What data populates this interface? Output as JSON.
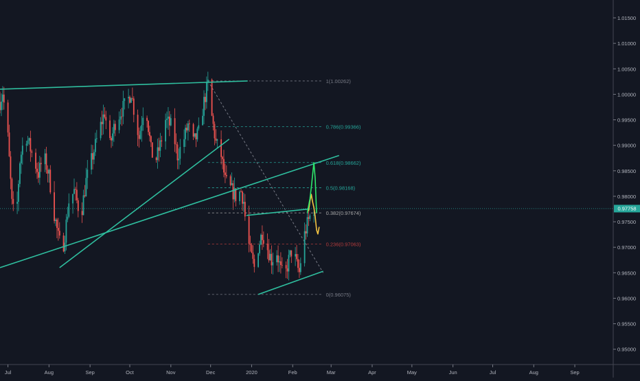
{
  "chart_data": {
    "type": "candlestick",
    "title": "",
    "xlabel": "",
    "ylabel": "",
    "ylim": [
      0.947,
      1.0185
    ],
    "x_range": [
      "2019-06-25",
      "2020-09-30"
    ],
    "grid": false,
    "legend": "none",
    "price_scale": {
      "side": "right",
      "ticks": [
        "1.01500",
        "1.01000",
        "1.00500",
        "1.00000",
        "0.99500",
        "0.99000",
        "0.98500",
        "0.98000",
        "0.97500",
        "0.97000",
        "0.96500",
        "0.96000",
        "0.95500",
        "0.95000"
      ],
      "last_price": "0.97758",
      "last_price_value": 0.97758
    },
    "time_scale": {
      "ticks": [
        {
          "label": "Jul",
          "date": "2019-07-01"
        },
        {
          "label": "Aug",
          "date": "2019-08-01"
        },
        {
          "label": "Sep",
          "date": "2019-09-01"
        },
        {
          "label": "Oct",
          "date": "2019-10-01"
        },
        {
          "label": "Nov",
          "date": "2019-11-01"
        },
        {
          "label": "Dec",
          "date": "2019-12-01"
        },
        {
          "label": "2020",
          "date": "2020-01-01"
        },
        {
          "label": "Feb",
          "date": "2020-02-01"
        },
        {
          "label": "Mar",
          "date": "2020-03-01"
        },
        {
          "label": "Apr",
          "date": "2020-04-01"
        },
        {
          "label": "May",
          "date": "2020-05-01"
        },
        {
          "label": "Jun",
          "date": "2020-06-01"
        },
        {
          "label": "Jul",
          "date": "2020-07-01"
        },
        {
          "label": "Aug",
          "date": "2020-08-01"
        },
        {
          "label": "Sep",
          "date": "2020-09-01"
        }
      ]
    },
    "price_path": [
      [
        "2019-06-25",
        0.9985
      ],
      [
        "2019-06-27",
        1.0005
      ],
      [
        "2019-07-01",
        0.9915
      ],
      [
        "2019-07-04",
        0.9785
      ],
      [
        "2019-07-07",
        0.9745
      ],
      [
        "2019-07-10",
        0.987
      ],
      [
        "2019-07-14",
        0.9925
      ],
      [
        "2019-07-19",
        0.9885
      ],
      [
        "2019-07-24",
        0.9845
      ],
      [
        "2019-07-28",
        0.988
      ],
      [
        "2019-08-01",
        0.984
      ],
      [
        "2019-08-05",
        0.9765
      ],
      [
        "2019-08-08",
        0.972
      ],
      [
        "2019-08-11",
        0.969
      ],
      [
        "2019-08-13",
        0.9725
      ],
      [
        "2019-08-16",
        0.979
      ],
      [
        "2019-08-20",
        0.981
      ],
      [
        "2019-08-25",
        0.976
      ],
      [
        "2019-08-29",
        0.983
      ],
      [
        "2019-09-03",
        0.988
      ],
      [
        "2019-09-08",
        0.993
      ],
      [
        "2019-09-12",
        0.9965
      ],
      [
        "2019-09-16",
        0.99
      ],
      [
        "2019-09-20",
        0.9945
      ],
      [
        "2019-09-25",
        0.997
      ],
      [
        "2019-09-29",
        0.9985
      ],
      [
        "2019-10-02",
        1.0005
      ],
      [
        "2019-10-05",
        0.9955
      ],
      [
        "2019-10-08",
        0.9915
      ],
      [
        "2019-10-11",
        0.9965
      ],
      [
        "2019-10-14",
        0.996
      ],
      [
        "2019-10-17",
        0.989
      ],
      [
        "2019-10-20",
        0.9865
      ],
      [
        "2019-10-24",
        0.99
      ],
      [
        "2019-10-28",
        0.995
      ],
      [
        "2019-11-02",
        0.9935
      ],
      [
        "2019-11-06",
        0.988
      ],
      [
        "2019-11-10",
        0.9905
      ],
      [
        "2019-11-14",
        0.994
      ],
      [
        "2019-11-18",
        0.9905
      ],
      [
        "2019-11-22",
        0.9925
      ],
      [
        "2019-11-26",
        0.9985
      ],
      [
        "2019-11-29",
        1.002
      ],
      [
        "2019-12-02",
        0.9955
      ],
      [
        "2019-12-05",
        0.9905
      ],
      [
        "2019-12-09",
        0.988
      ],
      [
        "2019-12-12",
        0.983
      ],
      [
        "2019-12-16",
        0.9815
      ],
      [
        "2019-12-20",
        0.98
      ],
      [
        "2019-12-24",
        0.981
      ],
      [
        "2019-12-26",
        0.979
      ],
      [
        "2019-12-28",
        0.973
      ],
      [
        "2019-12-31",
        0.969
      ],
      [
        "2020-01-03",
        0.966
      ],
      [
        "2020-01-06",
        0.97
      ],
      [
        "2020-01-09",
        0.973
      ],
      [
        "2020-01-12",
        0.9705
      ],
      [
        "2020-01-16",
        0.9675
      ],
      [
        "2020-01-20",
        0.969
      ],
      [
        "2020-01-23",
        0.9655
      ],
      [
        "2020-01-26",
        0.964
      ],
      [
        "2020-01-29",
        0.9675
      ],
      [
        "2020-02-01",
        0.97
      ],
      [
        "2020-02-04",
        0.9665
      ],
      [
        "2020-02-06",
        0.965
      ],
      [
        "2020-02-08",
        0.9695
      ],
      [
        "2020-02-10",
        0.9725
      ],
      [
        "2020-02-12",
        0.9745
      ],
      [
        "2020-02-14",
        0.976
      ],
      [
        "2020-02-16",
        0.977
      ],
      [
        "2020-02-17",
        0.97758
      ]
    ],
    "fibonacci": {
      "levels": [
        {
          "ratio": "1",
          "label": "1(1.00262)",
          "value": 1.00262,
          "color": "#787b86"
        },
        {
          "ratio": "0.786",
          "label": "0.786(0.99366)",
          "value": 0.99366,
          "color": "#26a69a"
        },
        {
          "ratio": "0.618",
          "label": "0.618(0.98662)",
          "value": 0.98662,
          "color": "#26a69a"
        },
        {
          "ratio": "0.5",
          "label": "0.5(0.98168)",
          "value": 0.98168,
          "color": "#26a69a"
        },
        {
          "ratio": "0.382",
          "label": "0.382(0.97674)",
          "value": 0.97674,
          "color": "#aaaaaa"
        },
        {
          "ratio": "0.236",
          "label": "0.236(0.97063)",
          "value": 0.97063,
          "color": "#b83c3c"
        },
        {
          "ratio": "0",
          "label": "0(0.96075)",
          "value": 0.96075,
          "color": "#787b86"
        }
      ],
      "start": [
        "2019-11-29",
        1.00262
      ],
      "end": [
        "2020-02-24",
        0.965
      ]
    },
    "trendlines": [
      {
        "from": [
          "2019-06-25",
          1.001
        ],
        "to": [
          "2019-12-29",
          1.00262
        ]
      },
      {
        "from": [
          "2019-08-09",
          0.966
        ],
        "to": [
          "2019-12-15",
          0.9912
        ]
      },
      {
        "from": [
          "2019-06-25",
          0.966
        ],
        "to": [
          "2020-03-07",
          0.988
        ]
      },
      {
        "from": [
          "2019-12-28",
          0.97624
        ],
        "to": [
          "2020-02-14",
          0.97752
        ]
      },
      {
        "from": [
          "2020-01-06",
          0.96075
        ],
        "to": [
          "2020-02-24",
          0.9653
        ]
      }
    ],
    "projection_green": [
      [
        "2020-02-12",
        0.97674
      ],
      [
        "2020-02-14",
        0.9795
      ],
      [
        "2020-02-15",
        0.98168
      ],
      [
        "2020-02-17",
        0.98662
      ],
      [
        "2020-02-18",
        0.9835
      ],
      [
        "2020-02-19",
        0.97674
      ]
    ],
    "projection_yellow": [
      [
        "2020-02-13",
        0.9771
      ],
      [
        "2020-02-14",
        0.979
      ],
      [
        "2020-02-15",
        0.9804
      ],
      [
        "2020-02-16",
        0.9789
      ],
      [
        "2020-02-17",
        0.9778
      ],
      [
        "2020-02-18",
        0.976
      ],
      [
        "2020-02-19",
        0.9734
      ],
      [
        "2020-02-20",
        0.9726
      ],
      [
        "2020-02-21",
        0.974
      ]
    ]
  }
}
